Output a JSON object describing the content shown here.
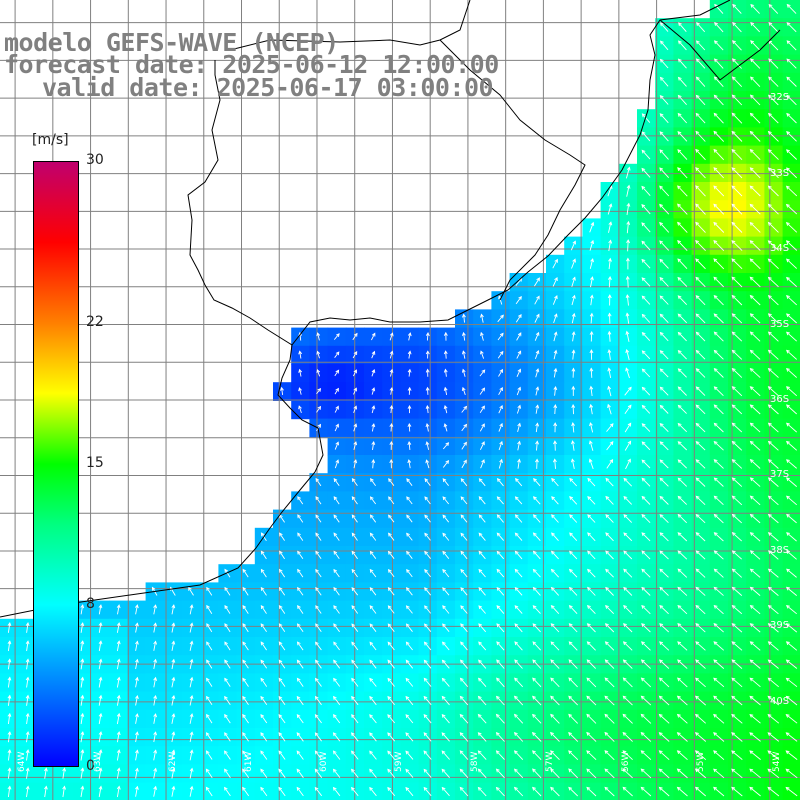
{
  "title": {
    "line1": "modelo GEFS-WAVE (NCEP)",
    "line2": "forecast date: 2025-06-12 12:00:00",
    "line3": "valid date: 2025-06-17 03:00:00"
  },
  "colorbar": {
    "units": "[m/s]",
    "min": 0,
    "max": 30,
    "ticks": [
      "30",
      "22",
      "15",
      "8",
      "0"
    ],
    "tick_values": [
      30,
      22,
      15,
      8,
      0
    ],
    "stops": [
      {
        "value": 0,
        "color": "#0000ff"
      },
      {
        "value": 4,
        "color": "#0080ff"
      },
      {
        "value": 8,
        "color": "#00ffff"
      },
      {
        "value": 12,
        "color": "#00ff80"
      },
      {
        "value": 15,
        "color": "#00ff00"
      },
      {
        "value": 18.5,
        "color": "#ffff00"
      },
      {
        "value": 22,
        "color": "#ff8000"
      },
      {
        "value": 26,
        "color": "#ff0000"
      },
      {
        "value": 30,
        "color": "#c0006e"
      }
    ]
  },
  "map": {
    "lat_labels": [
      "32S",
      "33S",
      "34S",
      "35S",
      "36S",
      "37S",
      "38S",
      "39S",
      "40S"
    ],
    "lat_values": [
      -32,
      -33,
      -34,
      -35,
      -36,
      -37,
      -38,
      -39,
      -40
    ],
    "lon_labels": [
      "64W",
      "63W",
      "62W",
      "61W",
      "60W",
      "59W",
      "58W",
      "57W",
      "56W",
      "55W",
      "54W"
    ],
    "lon_values": [
      -64,
      -63,
      -62,
      -61,
      -60,
      -59,
      -58,
      -57,
      -56,
      -55,
      -54
    ],
    "lon_range": [
      -64.2,
      -53.6
    ],
    "lat_range": [
      -41.3,
      -30.7
    ],
    "grid_color": "#808080",
    "arrow_color": "#ffffff",
    "coast_color": "#000000"
  }
}
